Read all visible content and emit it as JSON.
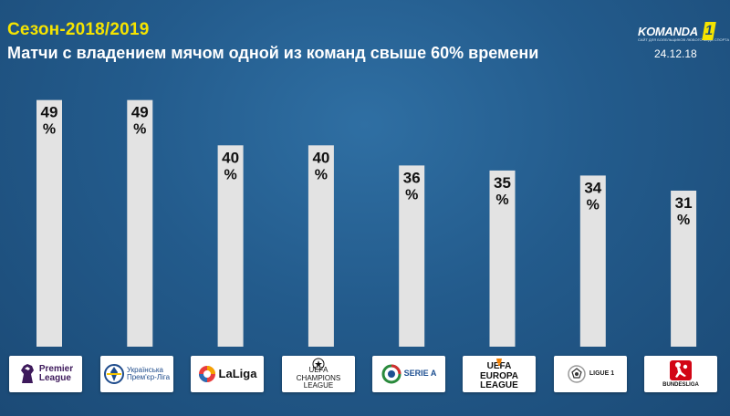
{
  "header": {
    "season": "Сезон-2018/2019",
    "subtitle": "Матчи с владением мячом одной из команд свыше 60% времени",
    "date": "24.12.18"
  },
  "brand": {
    "logo_text": "KOMANDA",
    "logo_sub": "САЙТ ДЛЯ БОЛЕЛЬЩИКОВ ЛЮБОГО ВИДА СПОРТА",
    "logo_num": "1",
    "accent": "#f5e400"
  },
  "colors": {
    "bar": "#e3e3e3",
    "bar_text": "#111111",
    "title": "#f5e400",
    "background": "#235b8c"
  },
  "chart_data": {
    "type": "bar",
    "categories": [
      "Premier League",
      "Українська Прем'єр-Ліга",
      "LaLiga",
      "Champions League",
      "Serie A",
      "Europa League",
      "Ligue 1",
      "Bundesliga"
    ],
    "values": [
      49,
      49,
      40,
      40,
      36,
      35,
      34,
      31
    ],
    "unit": "%",
    "title": "Матчи с владением мячом одной из команд свыше 60% времени",
    "xlabel": "",
    "ylabel": "",
    "ylim": [
      0,
      58
    ],
    "grid": false
  },
  "leagues": [
    {
      "label": "Premier\nLeague",
      "icon": "premier-league-lion-icon",
      "color": "#3d195b"
    },
    {
      "label": "Українська\nПрем'єр-Ліга",
      "icon": "upl-ball-icon",
      "color": "#1f4c8c"
    },
    {
      "label": "LaLiga",
      "icon": "laliga-ball-icon",
      "color": "#e83d3d"
    },
    {
      "label": "UEFA\nCHAMPIONS\nLEAGUE",
      "icon": "champions-league-star-ball-icon",
      "color": "#111111"
    },
    {
      "label": "SERIE A",
      "icon": "serie-a-shield-icon",
      "color": "#1d4f91"
    },
    {
      "label": "UEFA\nEUROPA\nLEAGUE",
      "icon": "europa-league-trophy-icon",
      "color": "#f07d00"
    },
    {
      "label": "LIGUE 1",
      "icon": "ligue-1-ball-icon",
      "color": "#1a1a1a"
    },
    {
      "label": "BUNDESLIGA",
      "icon": "bundesliga-player-icon",
      "color": "#d20515"
    }
  ]
}
